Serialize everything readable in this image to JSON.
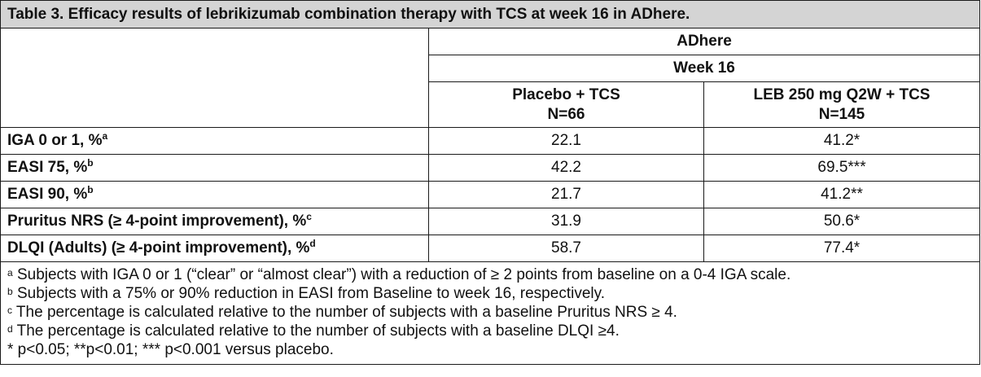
{
  "table": {
    "title": "Table 3. Efficacy results of lebrikizumab combination therapy with TCS at week 16 in ADhere.",
    "study": "ADhere",
    "timepoint": "Week 16",
    "columns": [
      {
        "line1": "Placebo + TCS",
        "line2": "N=66"
      },
      {
        "line1": "LEB 250 mg Q2W + TCS",
        "line2": "N=145"
      }
    ],
    "rows": [
      {
        "label": "IGA 0 or 1, %",
        "sup": "a",
        "placebo": "22.1",
        "leb": "41.2*"
      },
      {
        "label": "EASI 75, %",
        "sup": "b",
        "placebo": "42.2",
        "leb": "69.5***"
      },
      {
        "label": "EASI 90, %",
        "sup": "b",
        "placebo": "21.7",
        "leb": "41.2**"
      },
      {
        "label": "Pruritus NRS (≥ 4-point improvement), %",
        "sup": "c",
        "placebo": "31.9",
        "leb": "50.6*"
      },
      {
        "label": "DLQI (Adults) (≥ 4-point improvement), %",
        "sup": "d",
        "placebo": "58.7",
        "leb": "77.4*"
      }
    ],
    "footnotes": [
      {
        "mark": "a",
        "text": " Subjects with IGA 0 or 1 (“clear” or “almost clear”) with a reduction of ≥ 2 points from baseline on a 0-4 IGA scale."
      },
      {
        "mark": "b",
        "text": " Subjects with a 75% or 90% reduction in EASI from Baseline to week 16, respectively."
      },
      {
        "mark": "c",
        "text": " The percentage is calculated relative to the number of subjects with a baseline Pruritus NRS ≥ 4."
      },
      {
        "mark": "d",
        "text": " The percentage is calculated relative to the number of subjects with a baseline DLQI ≥4."
      }
    ],
    "significance": "* p<0.05; **p<0.01; *** p<0.001 versus placebo."
  }
}
